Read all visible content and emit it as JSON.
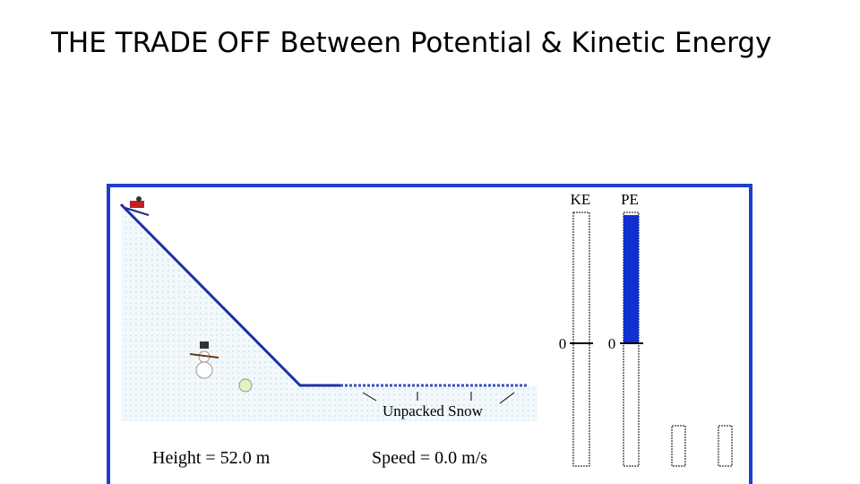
{
  "header": {
    "title": "THE TRADE OFF Between Potential & Kinetic Energy"
  },
  "figure": {
    "ke_label": "KE",
    "pe_label": "PE",
    "ke_zero": "0",
    "pe_zero": "0",
    "snow_label": "Unpacked Snow",
    "height_readout": "Height = 52.0 m",
    "speed_readout": "Speed = 0.0  m/s"
  }
}
